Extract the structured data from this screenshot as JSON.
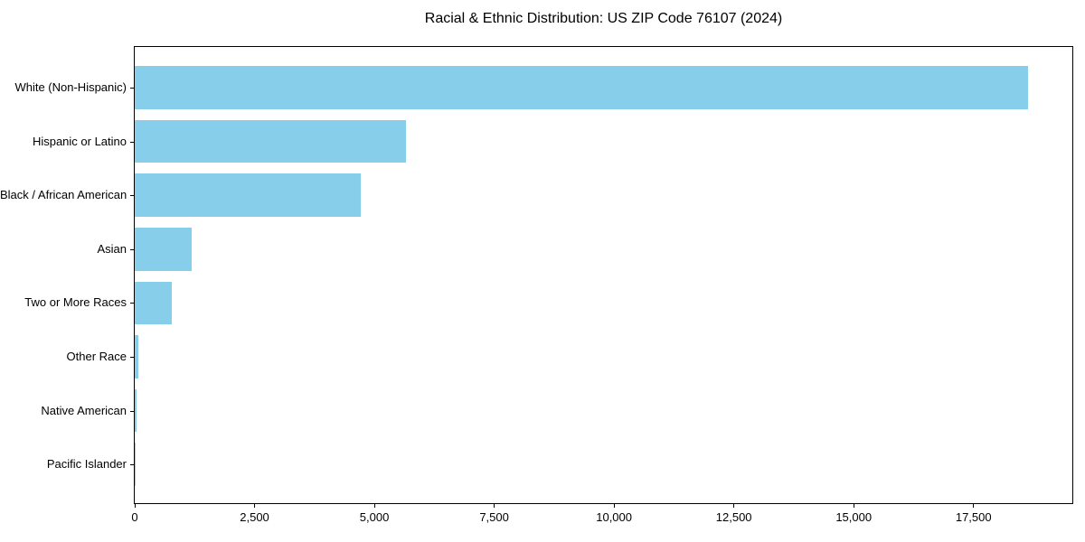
{
  "chart_data": {
    "type": "bar",
    "orientation": "horizontal",
    "title": "Racial & Ethnic Distribution: US ZIP Code 76107 (2024)",
    "categories": [
      "White (Non-Hispanic)",
      "Hispanic or Latino",
      "Black / African American",
      "Asian",
      "Two or More Races",
      "Other Race",
      "Native American",
      "Pacific Islander"
    ],
    "values": [
      18630,
      5650,
      4710,
      1180,
      775,
      75,
      30,
      10
    ],
    "xlabel": "",
    "ylabel": "",
    "xticks": [
      0,
      2500,
      5000,
      7500,
      10000,
      12500,
      15000,
      17500
    ],
    "xtick_labels": [
      "0",
      "2,500",
      "5,000",
      "7,500",
      "10,000",
      "12,500",
      "15,000",
      "17,500"
    ],
    "xlim": [
      0,
      19561
    ],
    "bar_color": "#87CEEB",
    "axis_color": "#000000",
    "background_color": "#ffffff",
    "grid": false,
    "legend": null
  }
}
